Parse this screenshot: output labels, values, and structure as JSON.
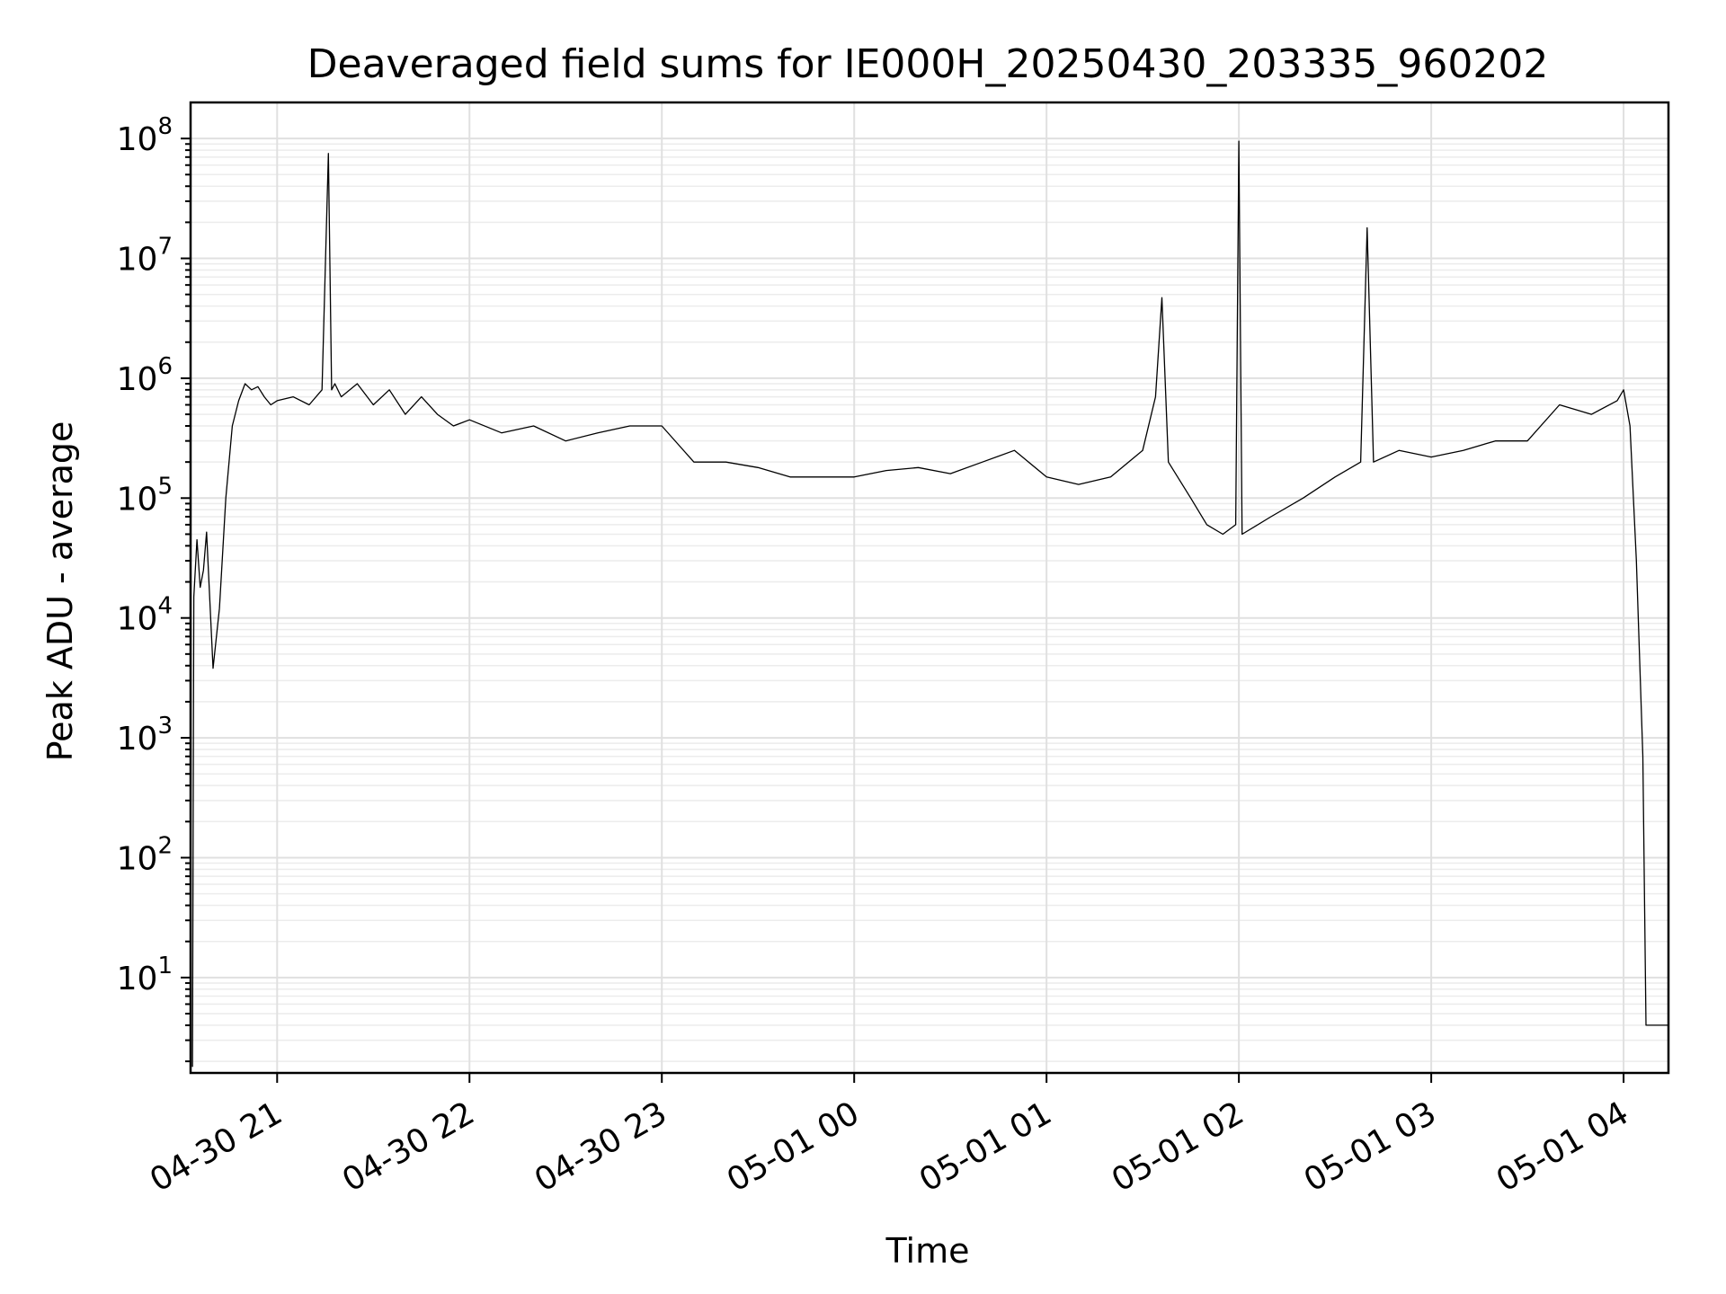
{
  "chart_data": {
    "type": "line",
    "title": "Deaveraged field sums for IE000H_20250430_203335_960202",
    "xlabel": "Time",
    "ylabel": "Peak ADU - average",
    "yscale": "log",
    "grid": true,
    "grid_color": "#e0e0e0",
    "line_color": "#000000",
    "xlim": [
      "2025-04-30 20:33",
      "2025-05-01 04:14"
    ],
    "ylim": [
      1.6,
      200000000
    ],
    "x_ticks": [
      {
        "value": "2025-04-30 21:00",
        "label": "04-30 21"
      },
      {
        "value": "2025-04-30 22:00",
        "label": "04-30 22"
      },
      {
        "value": "2025-04-30 23:00",
        "label": "04-30 23"
      },
      {
        "value": "2025-05-01 00:00",
        "label": "05-01 00"
      },
      {
        "value": "2025-05-01 01:00",
        "label": "05-01 01"
      },
      {
        "value": "2025-05-01 02:00",
        "label": "05-01 02"
      },
      {
        "value": "2025-05-01 03:00",
        "label": "05-01 03"
      },
      {
        "value": "2025-05-01 04:00",
        "label": "05-01 04"
      }
    ],
    "y_ticks": [
      {
        "value": 10,
        "base": "10",
        "exp": "1"
      },
      {
        "value": 100,
        "base": "10",
        "exp": "2"
      },
      {
        "value": 1000,
        "base": "10",
        "exp": "3"
      },
      {
        "value": 10000,
        "base": "10",
        "exp": "4"
      },
      {
        "value": 100000,
        "base": "10",
        "exp": "5"
      },
      {
        "value": 1000000,
        "base": "10",
        "exp": "6"
      },
      {
        "value": 10000000,
        "base": "10",
        "exp": "7"
      },
      {
        "value": 100000000,
        "base": "10",
        "exp": "8"
      }
    ],
    "series": [
      {
        "x": [
          "2025-04-30 20:33:35",
          "2025-04-30 20:34",
          "2025-04-30 20:35",
          "2025-04-30 20:36",
          "2025-04-30 20:37",
          "2025-04-30 20:38",
          "2025-04-30 20:40",
          "2025-04-30 20:42",
          "2025-04-30 20:44",
          "2025-04-30 20:46",
          "2025-04-30 20:48",
          "2025-04-30 20:50",
          "2025-04-30 20:52",
          "2025-04-30 20:54",
          "2025-04-30 20:56",
          "2025-04-30 20:58",
          "2025-04-30 21:00",
          "2025-04-30 21:05",
          "2025-04-30 21:10",
          "2025-04-30 21:14",
          "2025-04-30 21:16",
          "2025-04-30 21:17",
          "2025-04-30 21:18",
          "2025-04-30 21:20",
          "2025-04-30 21:25",
          "2025-04-30 21:30",
          "2025-04-30 21:35",
          "2025-04-30 21:40",
          "2025-04-30 21:45",
          "2025-04-30 21:50",
          "2025-04-30 21:55",
          "2025-04-30 22:00",
          "2025-04-30 22:10",
          "2025-04-30 22:20",
          "2025-04-30 22:30",
          "2025-04-30 22:40",
          "2025-04-30 22:50",
          "2025-04-30 23:00",
          "2025-04-30 23:10",
          "2025-04-30 23:20",
          "2025-04-30 23:30",
          "2025-04-30 23:40",
          "2025-04-30 23:50",
          "2025-05-01 00:00",
          "2025-05-01 00:10",
          "2025-05-01 00:20",
          "2025-05-01 00:30",
          "2025-05-01 00:40",
          "2025-05-01 00:50",
          "2025-05-01 01:00",
          "2025-05-01 01:10",
          "2025-05-01 01:20",
          "2025-05-01 01:30",
          "2025-05-01 01:34",
          "2025-05-01 01:36",
          "2025-05-01 01:38",
          "2025-05-01 01:45",
          "2025-05-01 01:50",
          "2025-05-01 01:55",
          "2025-05-01 01:59",
          "2025-05-01 02:00",
          "2025-05-01 02:01",
          "2025-05-01 02:10",
          "2025-05-01 02:20",
          "2025-05-01 02:30",
          "2025-05-01 02:38",
          "2025-05-01 02:40",
          "2025-05-01 02:42",
          "2025-05-01 02:50",
          "2025-05-01 03:00",
          "2025-05-01 03:10",
          "2025-05-01 03:20",
          "2025-05-01 03:30",
          "2025-05-01 03:40",
          "2025-05-01 03:50",
          "2025-05-01 03:58",
          "2025-05-01 04:00",
          "2025-05-01 04:02",
          "2025-05-01 04:04",
          "2025-05-01 04:06",
          "2025-05-01 04:07",
          "2025-05-01 04:08",
          "2025-05-01 04:14"
        ],
        "y": [
          1.8,
          15000,
          45000,
          18000,
          25000,
          52000,
          3800,
          12000,
          100000,
          400000,
          650000,
          900000,
          800000,
          850000,
          700000,
          600000,
          650000,
          700000,
          600000,
          800000,
          75000000,
          800000,
          900000,
          700000,
          900000,
          600000,
          800000,
          500000,
          700000,
          500000,
          400000,
          450000,
          350000,
          400000,
          300000,
          350000,
          400000,
          400000,
          200000,
          200000,
          180000,
          150000,
          150000,
          150000,
          170000,
          180000,
          160000,
          200000,
          250000,
          150000,
          130000,
          150000,
          250000,
          700000,
          4700000,
          200000,
          100000,
          60000,
          50000,
          60000,
          95000000,
          50000,
          70000,
          100000,
          150000,
          200000,
          18000000,
          200000,
          250000,
          220000,
          250000,
          300000,
          300000,
          600000,
          500000,
          650000,
          800000,
          400000,
          30000,
          700,
          4,
          4,
          4
        ]
      }
    ]
  }
}
